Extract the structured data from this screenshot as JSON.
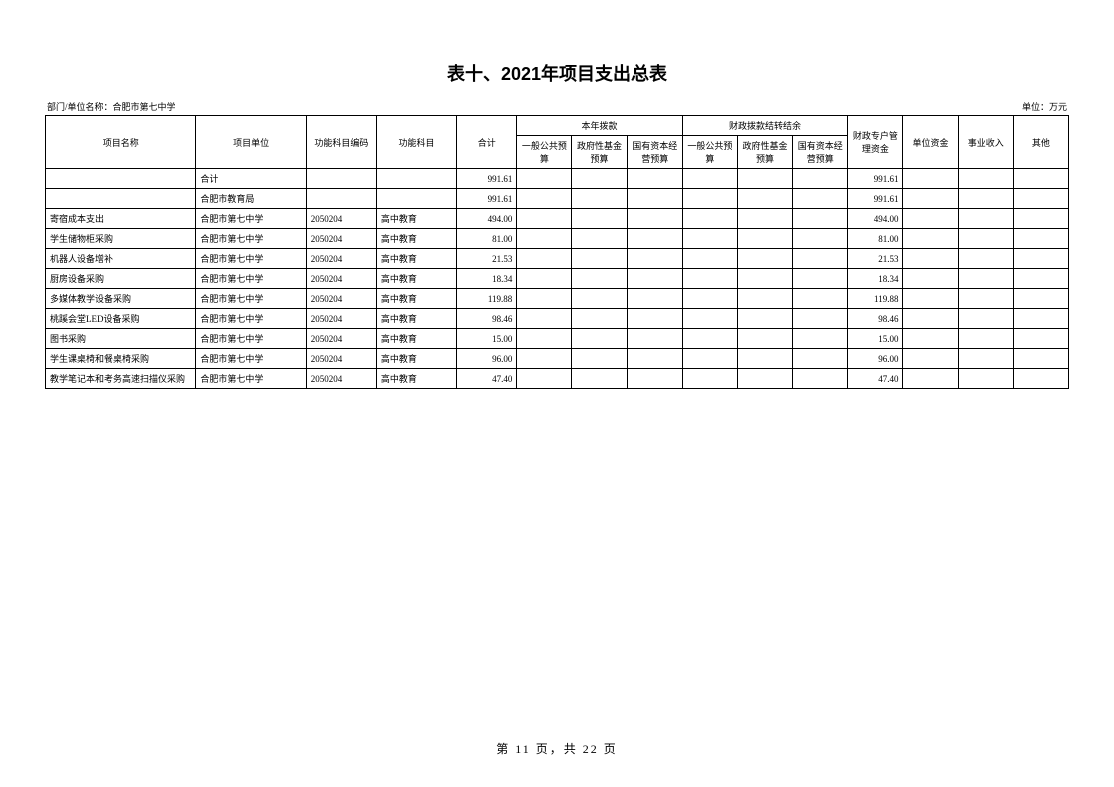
{
  "title": "表十、2021年项目支出总表",
  "dept_label": "部门/单位名称：合肥市第七中学",
  "unit_label": "单位：万元",
  "footer": "第 11 页，共 22 页",
  "headers": {
    "project_name": "项目名称",
    "project_unit": "项目单位",
    "func_code": "功能科目编码",
    "func_subj": "功能科目",
    "total": "合计",
    "this_year": "本年拨款",
    "carryover": "财政拨款结转结余",
    "general": "一般公共预算",
    "gov_fund": "政府性基金预算",
    "state_cap": "国有资本经营预算",
    "fiscal_acct": "财政专户管理资金",
    "unit_fund": "单位资金",
    "biz_income": "事业收入",
    "other": "其他"
  },
  "rows": [
    {
      "name": "",
      "unit": "合计",
      "code": "",
      "subj": "",
      "total": "991.61",
      "c1": "",
      "c2": "",
      "c3": "",
      "c4": "",
      "c5": "",
      "c6": "",
      "fa": "991.61",
      "uf": "",
      "bi": "",
      "oth": ""
    },
    {
      "name": "",
      "unit": "合肥市教育局",
      "code": "",
      "subj": "",
      "total": "991.61",
      "c1": "",
      "c2": "",
      "c3": "",
      "c4": "",
      "c5": "",
      "c6": "",
      "fa": "991.61",
      "uf": "",
      "bi": "",
      "oth": ""
    },
    {
      "name": "寄宿成本支出",
      "unit": "合肥市第七中学",
      "code": "2050204",
      "subj": "高中教育",
      "total": "494.00",
      "c1": "",
      "c2": "",
      "c3": "",
      "c4": "",
      "c5": "",
      "c6": "",
      "fa": "494.00",
      "uf": "",
      "bi": "",
      "oth": ""
    },
    {
      "name": "学生储物柜采购",
      "unit": "合肥市第七中学",
      "code": "2050204",
      "subj": "高中教育",
      "total": "81.00",
      "c1": "",
      "c2": "",
      "c3": "",
      "c4": "",
      "c5": "",
      "c6": "",
      "fa": "81.00",
      "uf": "",
      "bi": "",
      "oth": ""
    },
    {
      "name": "机器人设备增补",
      "unit": "合肥市第七中学",
      "code": "2050204",
      "subj": "高中教育",
      "total": "21.53",
      "c1": "",
      "c2": "",
      "c3": "",
      "c4": "",
      "c5": "",
      "c6": "",
      "fa": "21.53",
      "uf": "",
      "bi": "",
      "oth": ""
    },
    {
      "name": "厨房设备采购",
      "unit": "合肥市第七中学",
      "code": "2050204",
      "subj": "高中教育",
      "total": "18.34",
      "c1": "",
      "c2": "",
      "c3": "",
      "c4": "",
      "c5": "",
      "c6": "",
      "fa": "18.34",
      "uf": "",
      "bi": "",
      "oth": ""
    },
    {
      "name": "多媒体教学设备采购",
      "unit": "合肥市第七中学",
      "code": "2050204",
      "subj": "高中教育",
      "total": "119.88",
      "c1": "",
      "c2": "",
      "c3": "",
      "c4": "",
      "c5": "",
      "c6": "",
      "fa": "119.88",
      "uf": "",
      "bi": "",
      "oth": ""
    },
    {
      "name": "桃蹊会堂LED设备采购",
      "unit": "合肥市第七中学",
      "code": "2050204",
      "subj": "高中教育",
      "total": "98.46",
      "c1": "",
      "c2": "",
      "c3": "",
      "c4": "",
      "c5": "",
      "c6": "",
      "fa": "98.46",
      "uf": "",
      "bi": "",
      "oth": ""
    },
    {
      "name": "图书采购",
      "unit": "合肥市第七中学",
      "code": "2050204",
      "subj": "高中教育",
      "total": "15.00",
      "c1": "",
      "c2": "",
      "c3": "",
      "c4": "",
      "c5": "",
      "c6": "",
      "fa": "15.00",
      "uf": "",
      "bi": "",
      "oth": ""
    },
    {
      "name": "学生课桌椅和餐桌椅采购",
      "unit": "合肥市第七中学",
      "code": "2050204",
      "subj": "高中教育",
      "total": "96.00",
      "c1": "",
      "c2": "",
      "c3": "",
      "c4": "",
      "c5": "",
      "c6": "",
      "fa": "96.00",
      "uf": "",
      "bi": "",
      "oth": ""
    },
    {
      "name": "教学笔记本和考务高速扫描仪采购",
      "unit": "合肥市第七中学",
      "code": "2050204",
      "subj": "高中教育",
      "total": "47.40",
      "c1": "",
      "c2": "",
      "c3": "",
      "c4": "",
      "c5": "",
      "c6": "",
      "fa": "47.40",
      "uf": "",
      "bi": "",
      "oth": ""
    }
  ]
}
